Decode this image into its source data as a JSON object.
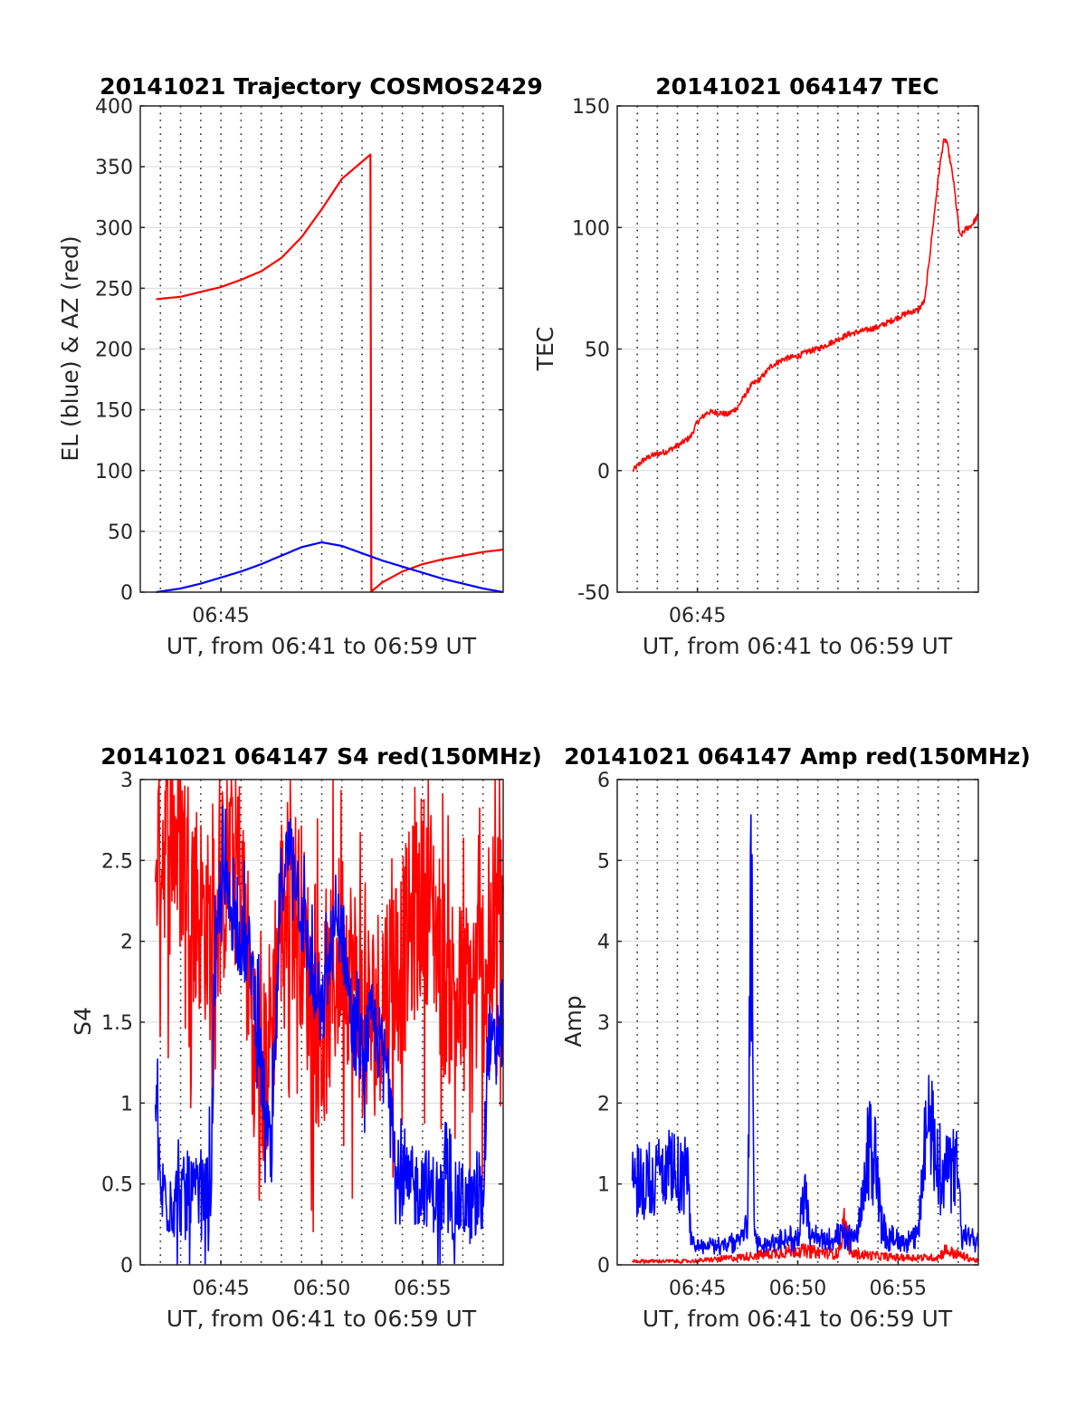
{
  "colors": {
    "red": "#ff0000",
    "blue": "#0000ff",
    "grid": "#d9d9d9",
    "axis": "#262626"
  },
  "chart_data": [
    {
      "type": "line",
      "title": "20141021 Trajectory COSMOS2429",
      "xlabel": "UT, from 06:41 to 06:59 UT",
      "ylabel": "EL (blue) & AZ (red)",
      "xlim": [
        "06:41",
        "06:59"
      ],
      "ylim": [
        0,
        400
      ],
      "yticks": [
        0,
        50,
        100,
        150,
        200,
        250,
        300,
        350,
        400
      ],
      "xticks": [
        {
          "t": "06:45",
          "label": "06:45"
        }
      ],
      "grid": true,
      "series": [
        {
          "color": "red",
          "t": [
            "06:41:47",
            "06:43:00",
            "06:44:00",
            "06:45:00",
            "06:46:00",
            "06:47:00",
            "06:48:00",
            "06:49:00",
            "06:50:00",
            "06:51:00",
            "06:52:25",
            "06:52:25.5",
            "06:53:00",
            "06:54:00",
            "06:55:00",
            "06:56:00",
            "06:57:00",
            "06:58:00",
            "06:59:00"
          ],
          "values": [
            241,
            243,
            247,
            251,
            257,
            264,
            275,
            292,
            315,
            340,
            360,
            0,
            8,
            17,
            23,
            27,
            30,
            33,
            35
          ]
        },
        {
          "color": "blue",
          "t": [
            "06:41:47",
            "06:43:00",
            "06:44:00",
            "06:45:00",
            "06:46:00",
            "06:47:00",
            "06:48:00",
            "06:49:00",
            "06:50:00",
            "06:51:00",
            "06:52:00",
            "06:53:00",
            "06:54:00",
            "06:55:00",
            "06:56:00",
            "06:57:00",
            "06:58:00",
            "06:59:00"
          ],
          "values": [
            0,
            3,
            7,
            12,
            17,
            23,
            30,
            37,
            41,
            38,
            32,
            26,
            21,
            16,
            11,
            7,
            3,
            0
          ]
        }
      ]
    },
    {
      "type": "line",
      "title": "20141021 064147 TEC",
      "xlabel": "UT, from 06:41 to 06:59 UT",
      "ylabel": "TEC",
      "xlim": [
        "06:41",
        "06:59"
      ],
      "ylim": [
        -50,
        150
      ],
      "yticks": [
        -50,
        0,
        50,
        100,
        150
      ],
      "xticks": [
        {
          "t": "06:45",
          "label": "06:45"
        }
      ],
      "grid": true,
      "series": [
        {
          "color": "red",
          "noise": 1.2,
          "t": [
            "06:41:47",
            "06:42:15",
            "06:42:40",
            "06:43:30",
            "06:44:10",
            "06:44:40",
            "06:45:00",
            "06:45:30",
            "06:46:00",
            "06:46:30",
            "06:47:00",
            "06:47:40",
            "06:48:10",
            "06:48:40",
            "06:49:20",
            "06:50:00",
            "06:50:30",
            "06:51:00",
            "06:51:30",
            "06:52:00",
            "06:52:30",
            "06:53:00",
            "06:53:30",
            "06:54:00",
            "06:54:30",
            "06:55:00",
            "06:55:30",
            "06:56:00",
            "06:56:20",
            "06:56:40",
            "06:57:00",
            "06:57:15",
            "06:57:25",
            "06:57:45",
            "06:58:05",
            "06:58:20",
            "06:58:40",
            "06:59:00"
          ],
          "values": [
            0,
            4,
            6,
            8,
            11,
            14,
            20,
            24,
            24,
            23,
            26,
            35,
            38,
            43,
            46,
            47,
            49,
            50,
            52,
            54,
            56,
            57,
            58,
            59,
            61,
            63,
            65,
            66,
            70,
            95,
            120,
            135,
            136,
            120,
            96,
            99,
            101,
            105
          ]
        }
      ]
    },
    {
      "type": "line",
      "title": "20141021 064147 S4 red(150MHz)",
      "xlabel": "UT, from 06:41 to 06:59 UT",
      "ylabel": "S4",
      "xlim": [
        "06:41",
        "06:59"
      ],
      "ylim": [
        0,
        3
      ],
      "yticks": [
        0,
        0.5,
        1,
        1.5,
        2,
        2.5,
        3
      ],
      "xticks": [
        {
          "t": "06:45",
          "label": "06:45"
        },
        {
          "t": "06:50",
          "label": "06:50"
        },
        {
          "t": "06:55",
          "label": "06:55"
        }
      ],
      "grid": true,
      "series": [
        {
          "color": "red",
          "noise": 1.3,
          "t": [
            "06:41:45",
            "06:42:00",
            "06:42:30",
            "06:43:00",
            "06:43:30",
            "06:44:00",
            "06:44:30",
            "06:45:00",
            "06:45:30",
            "06:46:00",
            "06:46:30",
            "06:47:00",
            "06:47:30",
            "06:48:00",
            "06:48:30",
            "06:49:00",
            "06:49:30",
            "06:50:00",
            "06:50:30",
            "06:51:00",
            "06:51:30",
            "06:52:00",
            "06:52:30",
            "06:53:00",
            "06:53:30",
            "06:54:00",
            "06:54:30",
            "06:55:00",
            "06:55:30",
            "06:56:00",
            "06:56:30",
            "06:57:00",
            "06:57:30",
            "06:58:00",
            "06:58:30",
            "06:59:00"
          ],
          "values": [
            2.6,
            2.6,
            2.7,
            2.6,
            2.4,
            2.2,
            2.0,
            2.3,
            2.5,
            2.4,
            1.6,
            1.0,
            1.5,
            2.2,
            2.3,
            2.1,
            1.6,
            1.4,
            1.7,
            2.0,
            1.8,
            1.6,
            1.5,
            1.7,
            1.8,
            1.9,
            2.1,
            2.3,
            2.2,
            1.8,
            1.7,
            1.6,
            1.7,
            1.8,
            2.0,
            2.2
          ]
        },
        {
          "color": "blue",
          "noise": 0.5,
          "t": [
            "06:41:45",
            "06:42:00",
            "06:42:30",
            "06:43:00",
            "06:43:30",
            "06:44:00",
            "06:44:30",
            "06:44:40",
            "06:45:00",
            "06:45:30",
            "06:46:00",
            "06:46:30",
            "06:47:00",
            "06:47:30",
            "06:48:00",
            "06:48:30",
            "06:49:00",
            "06:49:30",
            "06:50:00",
            "06:50:30",
            "06:51:00",
            "06:51:30",
            "06:52:00",
            "06:52:30",
            "06:53:00",
            "06:53:30",
            "06:53:40",
            "06:54:00",
            "06:54:30",
            "06:55:00",
            "06:55:30",
            "06:56:00",
            "06:56:30",
            "06:57:00",
            "06:57:30",
            "06:58:00",
            "06:58:15",
            "06:58:30",
            "06:59:00"
          ],
          "values": [
            1.0,
            0.45,
            0.4,
            0.42,
            0.42,
            0.4,
            0.45,
            1.6,
            2.4,
            2.2,
            2.0,
            1.9,
            1.2,
            0.6,
            2.4,
            2.6,
            2.2,
            1.8,
            1.5,
            2.0,
            2.1,
            1.5,
            1.3,
            1.5,
            1.3,
            1.1,
            0.5,
            0.5,
            0.45,
            0.5,
            0.45,
            0.4,
            0.38,
            0.4,
            0.35,
            0.4,
            1.4,
            1.3,
            1.6
          ]
        }
      ]
    },
    {
      "type": "line",
      "title": "20141021 064147 Amp red(150MHz)",
      "xlabel": "UT, from 06:41 to 06:59 UT",
      "ylabel": "Amp",
      "xlim": [
        "06:41",
        "06:59"
      ],
      "ylim": [
        0,
        6
      ],
      "yticks": [
        0,
        1,
        2,
        3,
        4,
        5,
        6
      ],
      "xticks": [
        {
          "t": "06:45",
          "label": "06:45"
        },
        {
          "t": "06:50",
          "label": "06:50"
        },
        {
          "t": "06:55",
          "label": "06:55"
        }
      ],
      "grid": true,
      "series": [
        {
          "color": "red",
          "noise": 0.08,
          "t": [
            "06:41:45",
            "06:44:40",
            "06:47:00",
            "06:50:00",
            "06:52:00",
            "06:52:20",
            "06:52:40",
            "06:55:00",
            "06:57:00",
            "06:57:20",
            "06:59:00"
          ],
          "values": [
            0.05,
            0.05,
            0.1,
            0.2,
            0.15,
            0.6,
            0.15,
            0.1,
            0.1,
            0.2,
            0.05
          ]
        },
        {
          "color": "blue",
          "noise": 0.55,
          "t": [
            "06:41:45",
            "06:42:30",
            "06:43:30",
            "06:44:30",
            "06:44:45",
            "06:45:00",
            "06:46:00",
            "06:47:00",
            "06:47:30",
            "06:47:40",
            "06:47:50",
            "06:48:00",
            "06:49:00",
            "06:50:00",
            "06:50:20",
            "06:50:40",
            "06:51:00",
            "06:52:00",
            "06:53:00",
            "06:53:30",
            "06:53:50",
            "06:54:10",
            "06:54:30",
            "06:55:00",
            "06:56:00",
            "06:56:15",
            "06:56:30",
            "06:57:00",
            "06:57:30",
            "06:58:00",
            "06:58:10",
            "06:59:00"
          ],
          "values": [
            1.1,
            1.1,
            1.2,
            1.1,
            0.2,
            0.2,
            0.2,
            0.25,
            0.5,
            5.65,
            0.3,
            0.2,
            0.25,
            0.3,
            0.9,
            0.3,
            0.3,
            0.3,
            0.3,
            1.5,
            1.5,
            0.5,
            0.3,
            0.3,
            0.3,
            1.5,
            1.8,
            1.4,
            1.2,
            1.2,
            0.3,
            0.3
          ]
        }
      ]
    }
  ]
}
